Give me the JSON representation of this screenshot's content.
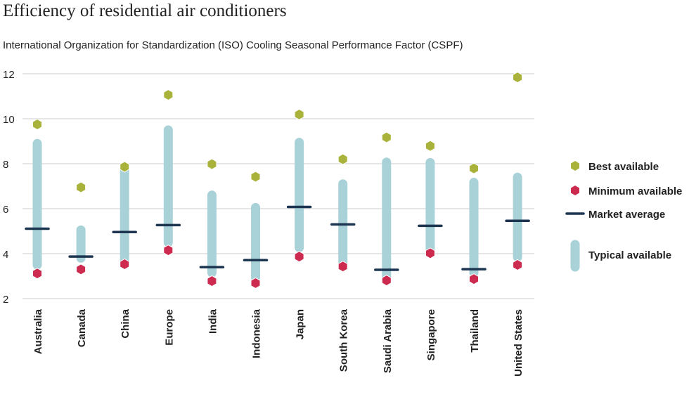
{
  "chart_data": {
    "type": "scatter",
    "title": "Efficiency of residential air conditioners",
    "subtitle": "International Organization for Standardization (ISO) Cooling Seasonal Performance Factor (CSPF)",
    "ylim": [
      2,
      12
    ],
    "yticks": [
      2,
      4,
      6,
      8,
      10,
      12
    ],
    "grid": true,
    "legend_placement": "right",
    "colors": {
      "best": "#a9b23a",
      "minimum": "#cc2a4f",
      "average": "#1c3550",
      "typical": "#a8d1d8"
    },
    "categories": [
      "Australia",
      "Canada",
      "China",
      "Europe",
      "India",
      "Indonesia",
      "Japan",
      "South Korea",
      "Saudi Arabia",
      "Singapore",
      "Thailand",
      "United States"
    ],
    "series": [
      {
        "name": "Best available",
        "values": [
          9.75,
          6.95,
          7.86,
          11.06,
          7.98,
          7.42,
          10.19,
          8.2,
          9.17,
          8.79,
          7.79,
          11.84
        ]
      },
      {
        "name": "Minimum available",
        "values": [
          3.12,
          3.3,
          3.53,
          4.15,
          2.78,
          2.69,
          3.87,
          3.43,
          2.81,
          4.02,
          2.87,
          3.5
        ]
      },
      {
        "name": "Market average",
        "values": [
          5.11,
          3.87,
          4.96,
          5.27,
          3.4,
          3.71,
          6.08,
          5.3,
          3.28,
          5.24,
          3.31,
          5.46
        ]
      },
      {
        "name": "Typical available",
        "low": [
          3.5,
          3.8,
          3.6,
          4.5,
          3.15,
          2.95,
          4.27,
          3.6,
          3.0,
          4.2,
          3.15,
          3.85
        ],
        "high": [
          8.9,
          5.05,
          7.8,
          9.5,
          6.6,
          6.05,
          8.95,
          7.1,
          8.07,
          8.05,
          7.17,
          7.4
        ]
      }
    ]
  }
}
